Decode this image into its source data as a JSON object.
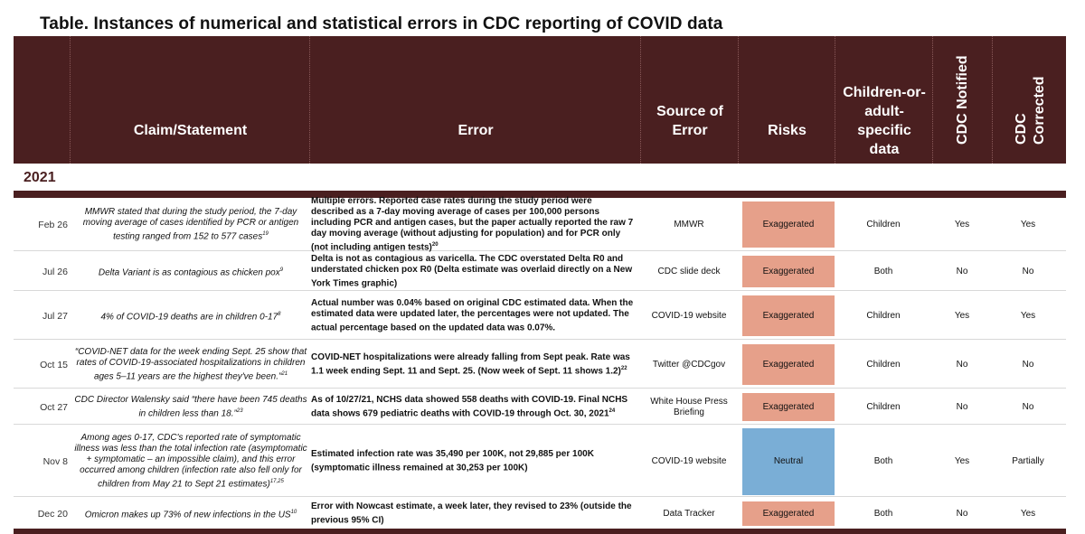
{
  "title": "Table. Instances of numerical and statistical errors in CDC reporting of COVID data",
  "headers": {
    "claim": "Claim/Statement",
    "error": "Error",
    "source": "Source of Error",
    "risks": "Risks",
    "specific": "Children-or-adult-specific data",
    "notified": "CDC Notified",
    "corrected": "CDC Corrected"
  },
  "year": "2021",
  "colors": {
    "header": "#4a1f20",
    "exaggerated": "#e6a08a",
    "neutral": "#7aaed6"
  },
  "rows": [
    {
      "date": "Feb 26",
      "claim": "MMWR stated that during the study period, the 7-day moving average of cases identified by PCR or antigen testing ranged from 152 to 577 cases",
      "claim_ref": "19",
      "error": "Multiple errors. Reported case rates during the study period were described as a 7-day moving average of cases per 100,000 persons including PCR and antigen cases, but the paper actually reported the raw 7 day moving average (without adjusting for population) and for PCR only (not including antigen tests)",
      "error_ref": "20",
      "source": "MMWR",
      "risk": "Exaggerated",
      "specific": "Children",
      "notified": "Yes",
      "corrected": "Yes"
    },
    {
      "date": "Jul 26",
      "claim": "Delta Variant is as contagious as chicken pox",
      "claim_ref": "9",
      "error": "Delta is not as contagious as varicella. The CDC overstated Delta R0 and understated chicken pox R0 (Delta estimate was overlaid directly on a New York Times graphic)",
      "error_ref": "",
      "source": "CDC slide deck",
      "risk": "Exaggerated",
      "specific": "Both",
      "notified": "No",
      "corrected": "No"
    },
    {
      "date": "Jul 27",
      "claim": "4% of COVID-19 deaths are in children 0-17",
      "claim_ref": "8",
      "error": "Actual number was 0.04% based on original CDC estimated data. When the estimated data were updated later, the percentages were not updated. The actual percentage based on the updated data was 0.07%.",
      "error_ref": "",
      "source": "COVID-19 website",
      "risk": "Exaggerated",
      "specific": "Children",
      "notified": "Yes",
      "corrected": "Yes"
    },
    {
      "date": "Oct 15",
      "claim": "“COVID-NET data for the week ending Sept. 25 show that rates of COVID-19-associated hospitalizations in children ages 5–11 years are the highest they've been.”",
      "claim_ref": "21",
      "error": "COVID-NET hospitalizations were already falling from Sept peak. Rate was 1.1 week ending Sept. 11 and Sept. 25. (Now week of Sept. 11 shows 1.2)",
      "error_ref": "22",
      "source": "Twitter @CDCgov",
      "risk": "Exaggerated",
      "specific": "Children",
      "notified": "No",
      "corrected": "No"
    },
    {
      "date": "Oct 27",
      "claim": "CDC Director Walensky said “there have been 745 deaths in children less than 18.”",
      "claim_ref": "23",
      "error": "As of 10/27/21, NCHS data showed 558 deaths with COVID-19. Final NCHS data shows 679 pediatric deaths with COVID-19 through Oct. 30, 2021",
      "error_ref": "24",
      "source": "White House Press Briefing",
      "risk": "Exaggerated",
      "specific": "Children",
      "notified": "No",
      "corrected": "No"
    },
    {
      "date": "Nov 8",
      "claim": "Among ages 0-17, CDC's reported rate of symptomatic illness was less than the total infection rate (asymptomatic + symptomatic – an impossible claim), and this error occurred among children (infection rate also fell only for children from May 21 to Sept 21 estimates)",
      "claim_ref": "17,25",
      "error": "Estimated infection rate was 35,490 per 100K, not 29,885 per 100K (symptomatic illness remained at 30,253 per 100K)",
      "error_ref": "",
      "source": "COVID-19 website",
      "risk": "Neutral",
      "specific": "Both",
      "notified": "Yes",
      "corrected": "Partially"
    },
    {
      "date": "Dec 20",
      "claim": "Omicron makes up 73% of new infections in the US",
      "claim_ref": "10",
      "error": "Error with Nowcast estimate, a week later, they revised to 23% (outside the previous 95% CI)",
      "error_ref": "",
      "source": "Data Tracker",
      "risk": "Exaggerated",
      "specific": "Both",
      "notified": "No",
      "corrected": "Yes"
    }
  ]
}
